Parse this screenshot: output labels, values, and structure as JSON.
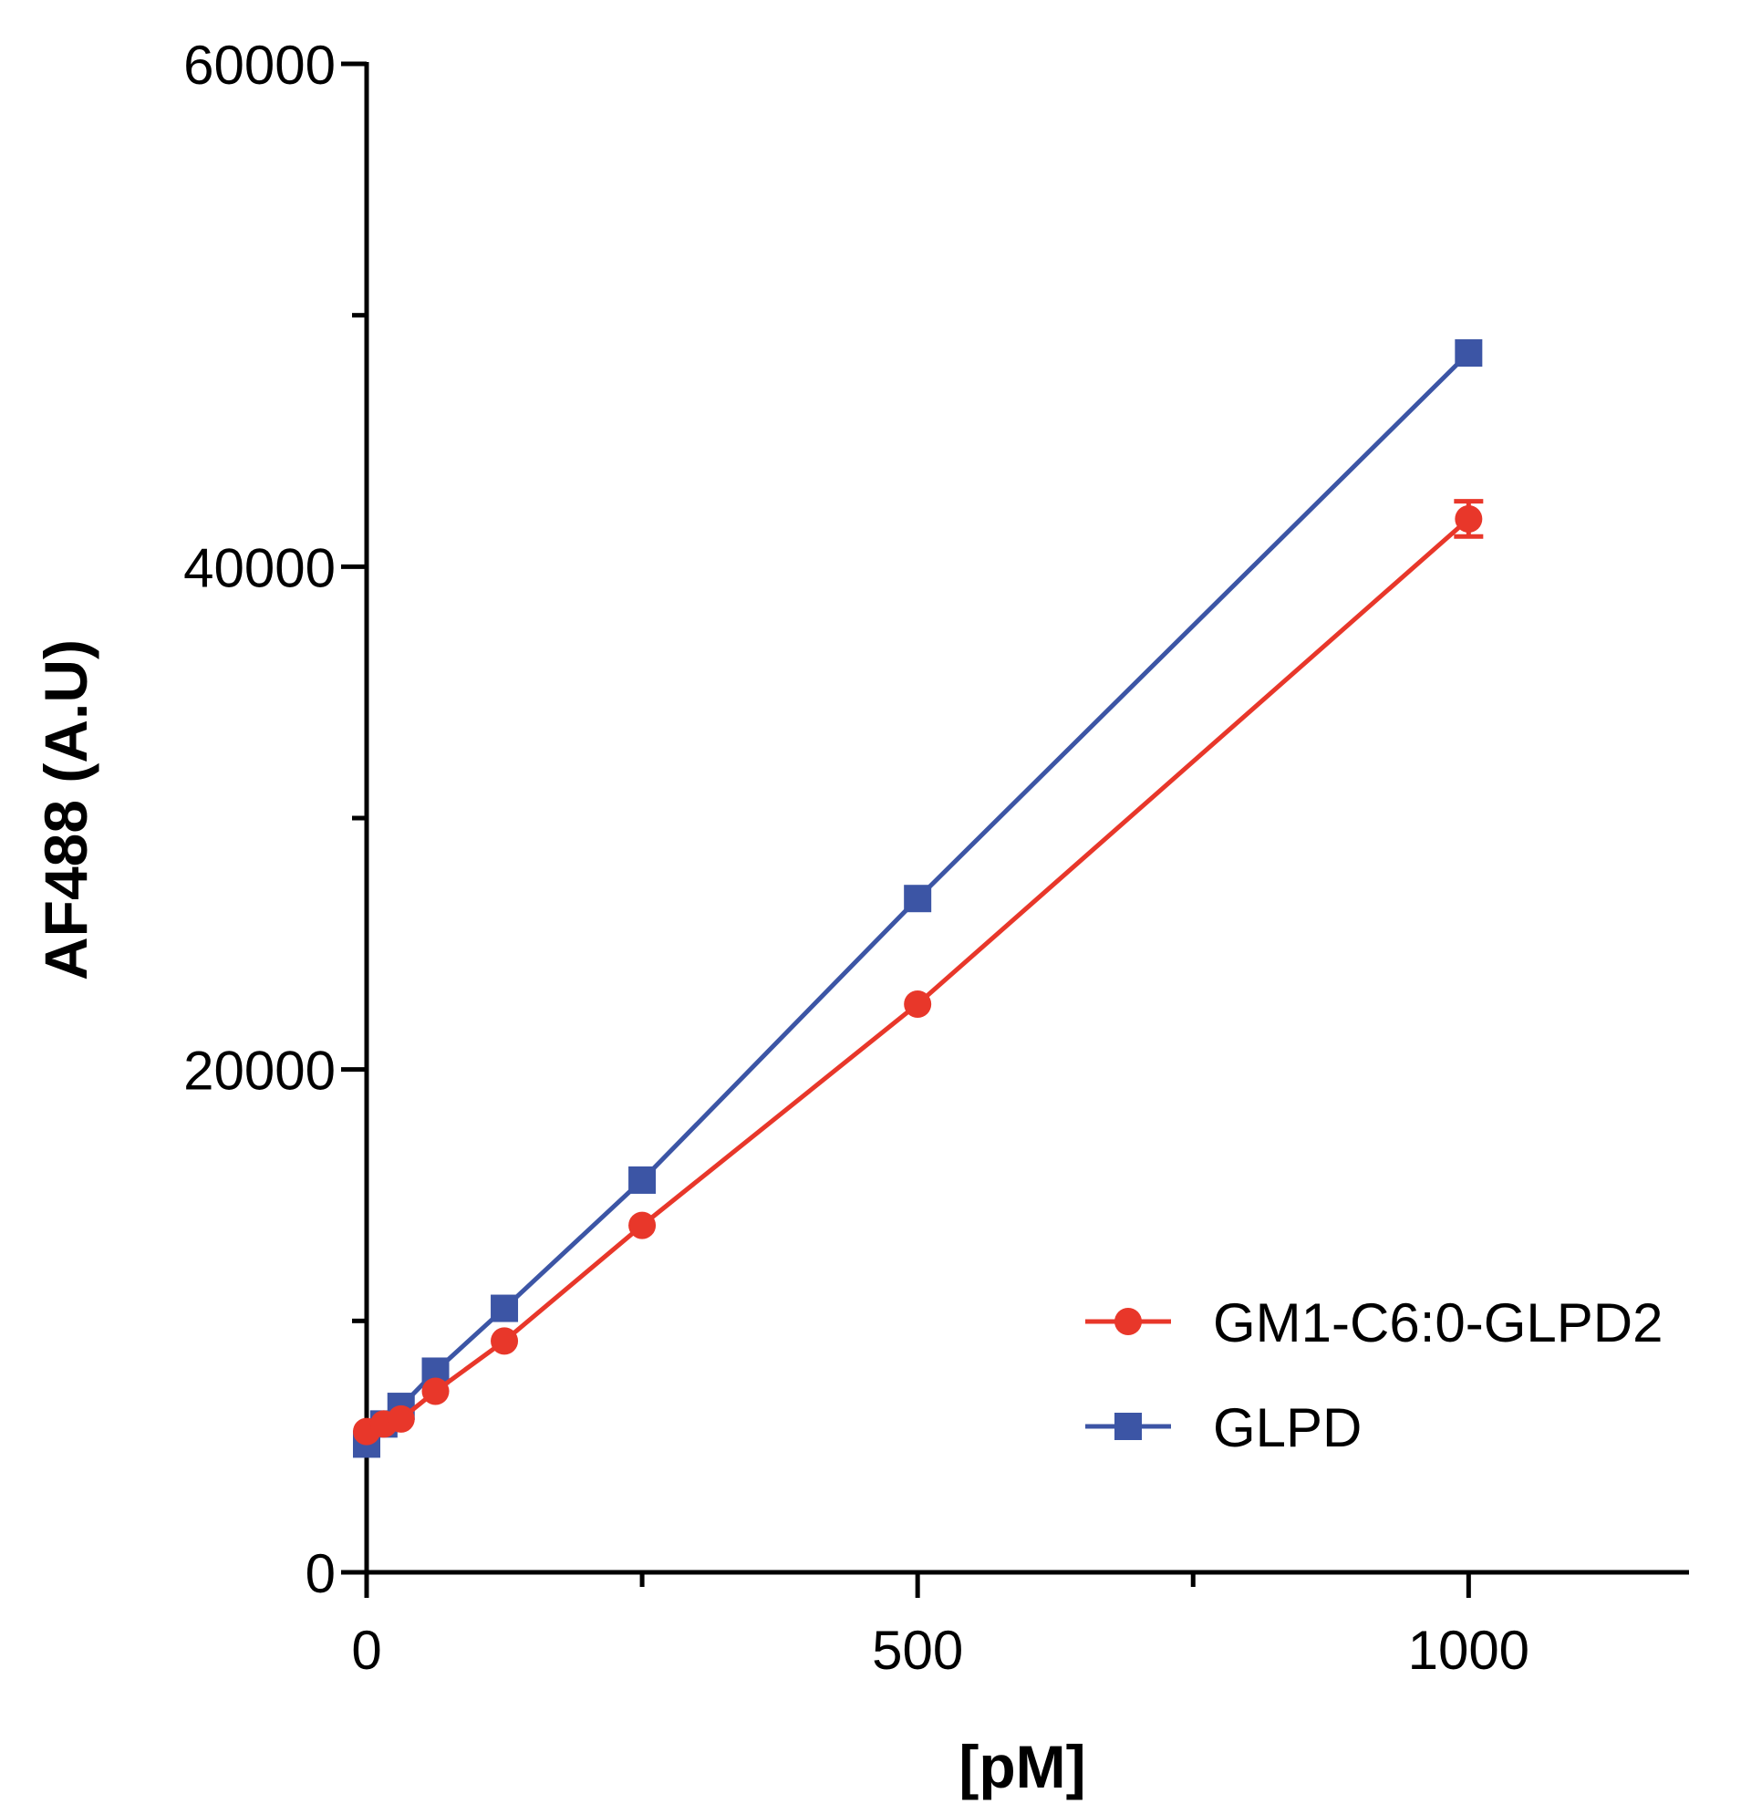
{
  "chart_data": {
    "type": "line",
    "title": "",
    "xlabel": "[pM]",
    "ylabel": "AF488 (A.U)",
    "xlim": [
      0,
      1200
    ],
    "ylim": [
      0,
      60000
    ],
    "x_ticks": [
      0,
      500,
      1000
    ],
    "y_ticks": [
      0,
      20000,
      40000,
      60000
    ],
    "x_tick_labels": [
      "0",
      "500",
      "1000"
    ],
    "y_tick_labels": [
      "0",
      "20000",
      "40000",
      "60000"
    ],
    "grid": false,
    "legend_position": "bottom-right",
    "series": [
      {
        "name": "GLPD",
        "color": "#3c55a5",
        "marker": "square",
        "x": [
          0,
          15.6,
          31.25,
          62.5,
          125,
          250,
          500,
          1000
        ],
        "y": [
          5100,
          5900,
          6600,
          8000,
          10500,
          15600,
          26800,
          48500
        ]
      },
      {
        "name": "GM1-C6:0-GLPD2",
        "color": "#e8372a",
        "marker": "circle",
        "x": [
          0,
          15.6,
          31.25,
          62.5,
          125,
          250,
          500,
          1000
        ],
        "y": [
          5600,
          5900,
          6100,
          7200,
          9200,
          13800,
          22600,
          41900
        ],
        "error": [
          0,
          0,
          0,
          0,
          0,
          0,
          0,
          700
        ]
      }
    ],
    "legend": [
      {
        "label": "GM1-C6:0-GLPD2",
        "color": "#e8372a",
        "marker": "circle"
      },
      {
        "label": "GLPD",
        "color": "#3c55a5",
        "marker": "square"
      }
    ]
  }
}
